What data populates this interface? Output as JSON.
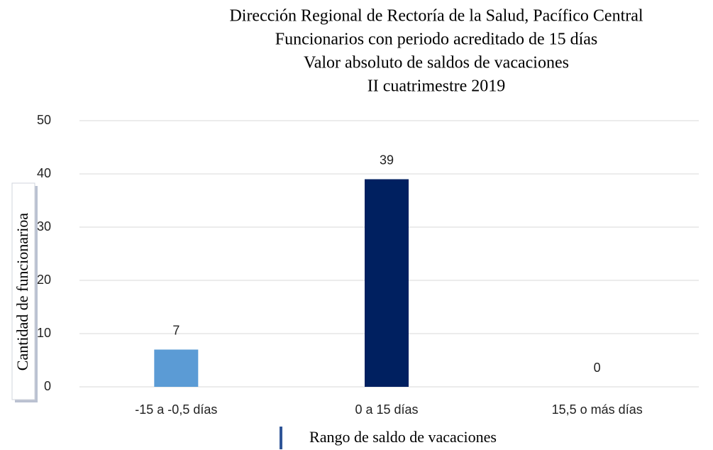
{
  "chart_data": {
    "type": "bar",
    "title": [
      "Dirección Regional de Rectoría de la Salud, Pacífico Central",
      "Funcionarios con periodo acreditado de 15 días",
      "Valor absoluto de saldos de vacaciones",
      "II cuatrimestre 2019"
    ],
    "x_label": "Rango de saldo de vacaciones",
    "y_label": "Cantidad de funcionarioa",
    "categories": [
      "-15 a -0,5 días",
      "0 a 15 días",
      "15,5 o más días"
    ],
    "values": [
      7,
      39,
      0
    ],
    "colors": [
      "#5b9bd5",
      "#002060",
      "#5b9bd5"
    ],
    "ylim": [
      0,
      50
    ],
    "yticks": [
      0,
      10,
      20,
      30,
      40,
      50
    ],
    "grid": true
  }
}
